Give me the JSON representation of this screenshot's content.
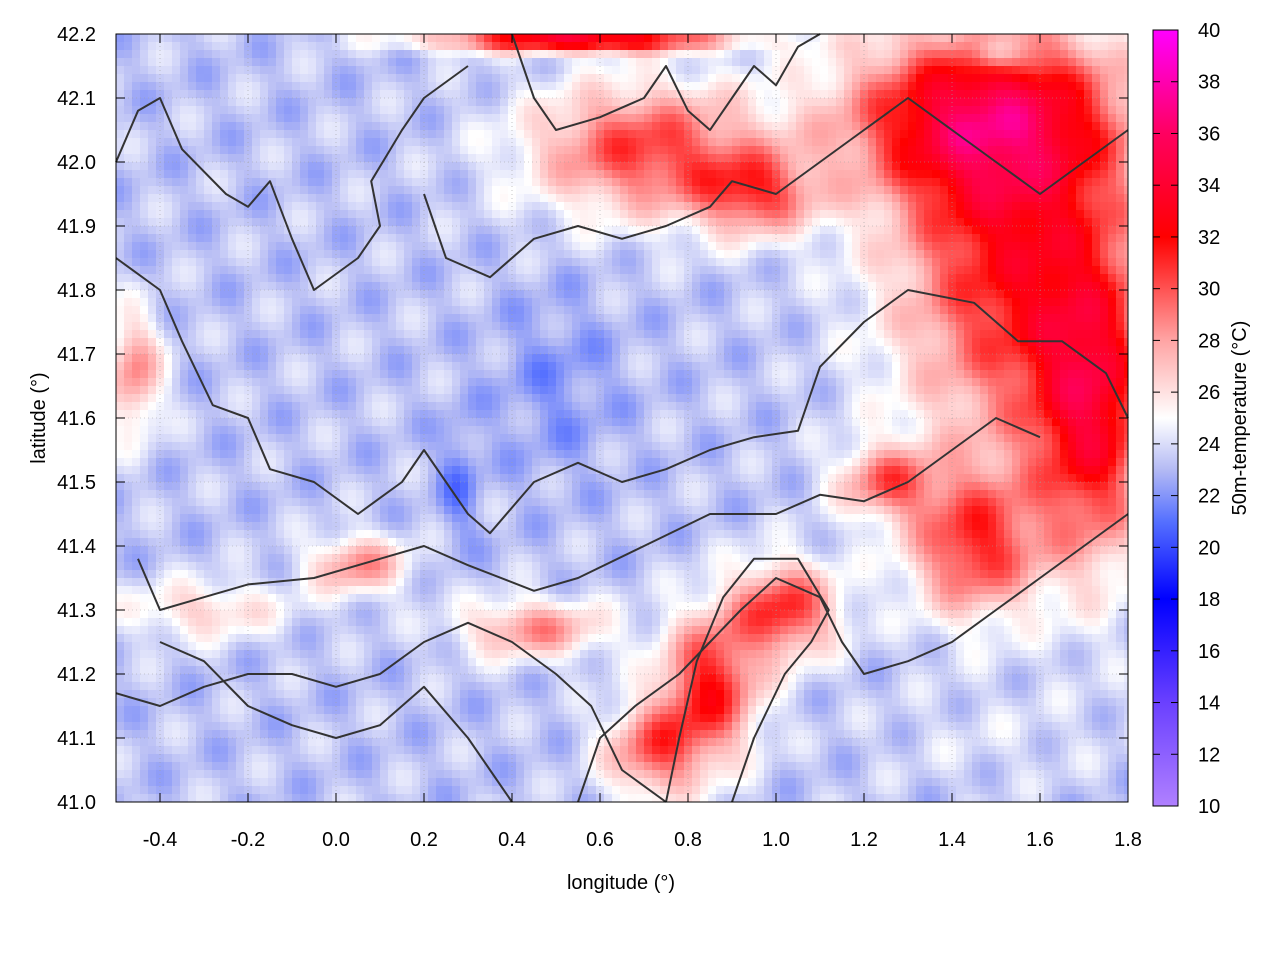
{
  "chart_data": {
    "type": "heatmap",
    "title": "",
    "xlabel": "longitude (°)",
    "ylabel": "latitude (°)",
    "colorbar_label": "50m-temperature (°C)",
    "xlim": [
      -0.5,
      1.8
    ],
    "ylim": [
      41.0,
      42.2
    ],
    "clim": [
      10,
      40
    ],
    "xticks": [
      "-0.4",
      "-0.2",
      "0.0",
      "0.2",
      "0.4",
      "0.6",
      "0.8",
      "1.0",
      "1.2",
      "1.4",
      "1.6",
      "1.8"
    ],
    "yticks": [
      "41.0",
      "41.1",
      "41.2",
      "41.3",
      "41.4",
      "41.5",
      "41.6",
      "41.7",
      "41.8",
      "41.9",
      "42.0",
      "42.1",
      "42.2"
    ],
    "cticks": [
      "10",
      "12",
      "14",
      "16",
      "18",
      "20",
      "22",
      "24",
      "26",
      "28",
      "30",
      "32",
      "34",
      "36",
      "38",
      "40"
    ],
    "grid": true,
    "colormap": [
      {
        "v": 10,
        "c": "#b080ff"
      },
      {
        "v": 14,
        "c": "#6a40ff"
      },
      {
        "v": 18,
        "c": "#0000ff"
      },
      {
        "v": 21,
        "c": "#5570ff"
      },
      {
        "v": 23,
        "c": "#b4baf4"
      },
      {
        "v": 25,
        "c": "#ffffff"
      },
      {
        "v": 28,
        "c": "#ffa4a4"
      },
      {
        "v": 32,
        "c": "#ff0000"
      },
      {
        "v": 36,
        "c": "#ff0060"
      },
      {
        "v": 40,
        "c": "#ff00ff"
      }
    ],
    "field": {
      "base_temperature": 23.3,
      "regions": [
        {
          "lon": 1.55,
          "lat": 41.85,
          "rlon": 0.3,
          "rlat": 0.33,
          "temp": 32
        },
        {
          "lon": 1.45,
          "lat": 42.07,
          "rlon": 0.35,
          "rlat": 0.14,
          "temp": 32
        },
        {
          "lon": 1.72,
          "lat": 41.6,
          "rlon": 0.14,
          "rlat": 0.25,
          "temp": 31.5
        },
        {
          "lon": 0.7,
          "lat": 42.02,
          "rlon": 0.28,
          "rlat": 0.11,
          "temp": 30.5
        },
        {
          "lon": 0.95,
          "lat": 41.95,
          "rlon": 0.15,
          "rlat": 0.07,
          "temp": 29.5
        },
        {
          "lon": 1.45,
          "lat": 41.4,
          "rlon": 0.16,
          "rlat": 0.12,
          "temp": 30.5
        },
        {
          "lon": 1.25,
          "lat": 41.5,
          "rlon": 0.12,
          "rlat": 0.06,
          "temp": 29
        },
        {
          "lon": 0.85,
          "lat": 41.18,
          "rlon": 0.12,
          "rlat": 0.12,
          "temp": 31.5
        },
        {
          "lon": 1.02,
          "lat": 41.3,
          "rlon": 0.13,
          "rlat": 0.08,
          "temp": 31
        },
        {
          "lon": 0.72,
          "lat": 41.08,
          "rlon": 0.12,
          "rlat": 0.08,
          "temp": 29.5
        },
        {
          "lon": 0.05,
          "lat": 41.37,
          "rlon": 0.12,
          "rlat": 0.05,
          "temp": 28.5
        },
        {
          "lon": 0.45,
          "lat": 41.27,
          "rlon": 0.18,
          "rlat": 0.05,
          "temp": 28.5
        },
        {
          "lon": -0.46,
          "lat": 41.67,
          "rlon": 0.07,
          "rlat": 0.1,
          "temp": 28.5
        },
        {
          "lon": -0.3,
          "lat": 41.3,
          "rlon": 0.2,
          "rlat": 0.05,
          "temp": 26.5
        },
        {
          "lon": 0.55,
          "lat": 42.19,
          "rlon": 0.35,
          "rlat": 0.02,
          "temp": 34
        },
        {
          "lon": 1.5,
          "lat": 41.1,
          "rlon": 0.32,
          "rlat": 0.09,
          "temp": 24
        },
        {
          "lon": 0.5,
          "lat": 41.65,
          "rlon": 0.15,
          "rlat": 0.15,
          "temp": 22
        },
        {
          "lon": 0.28,
          "lat": 41.5,
          "rlon": 0.05,
          "rlat": 0.1,
          "temp": 21.5
        },
        {
          "lon": 1.5,
          "lat": 42.17,
          "rlon": 0.06,
          "rlat": 0.03,
          "temp": 19
        }
      ]
    },
    "contours": [
      [
        [
          -0.5,
          42.0
        ],
        [
          -0.45,
          42.08
        ],
        [
          -0.4,
          42.1
        ],
        [
          -0.35,
          42.02
        ],
        [
          -0.25,
          41.95
        ],
        [
          -0.2,
          41.93
        ],
        [
          -0.15,
          41.97
        ],
        [
          -0.1,
          41.88
        ],
        [
          -0.05,
          41.8
        ],
        [
          0.05,
          41.85
        ],
        [
          0.1,
          41.9
        ],
        [
          0.08,
          41.97
        ],
        [
          0.15,
          42.05
        ],
        [
          0.2,
          42.1
        ],
        [
          0.3,
          42.15
        ]
      ],
      [
        [
          -0.5,
          41.85
        ],
        [
          -0.4,
          41.8
        ],
        [
          -0.35,
          41.72
        ],
        [
          -0.28,
          41.62
        ],
        [
          -0.2,
          41.6
        ],
        [
          -0.15,
          41.52
        ],
        [
          -0.05,
          41.5
        ],
        [
          0.05,
          41.45
        ],
        [
          0.15,
          41.5
        ],
        [
          0.2,
          41.55
        ],
        [
          0.25,
          41.5
        ],
        [
          0.3,
          41.45
        ],
        [
          0.35,
          41.42
        ],
        [
          0.45,
          41.5
        ],
        [
          0.55,
          41.53
        ],
        [
          0.65,
          41.5
        ],
        [
          0.75,
          41.52
        ],
        [
          0.85,
          41.55
        ],
        [
          0.95,
          41.57
        ],
        [
          1.05,
          41.58
        ],
        [
          1.1,
          41.68
        ],
        [
          1.2,
          41.75
        ],
        [
          1.3,
          41.8
        ],
        [
          1.45,
          41.78
        ],
        [
          1.55,
          41.72
        ],
        [
          1.65,
          41.72
        ],
        [
          1.75,
          41.67
        ],
        [
          1.8,
          41.6
        ]
      ],
      [
        [
          -0.45,
          41.38
        ],
        [
          -0.4,
          41.3
        ],
        [
          -0.3,
          41.32
        ],
        [
          -0.2,
          41.34
        ],
        [
          -0.05,
          41.35
        ],
        [
          0.1,
          41.38
        ],
        [
          0.2,
          41.4
        ],
        [
          0.3,
          41.37
        ],
        [
          0.45,
          41.33
        ],
        [
          0.55,
          41.35
        ],
        [
          0.7,
          41.4
        ],
        [
          0.85,
          41.45
        ],
        [
          1.0,
          41.45
        ],
        [
          1.1,
          41.48
        ],
        [
          1.2,
          41.47
        ],
        [
          1.3,
          41.5
        ],
        [
          1.4,
          41.55
        ],
        [
          1.5,
          41.6
        ],
        [
          1.6,
          41.57
        ]
      ],
      [
        [
          -0.5,
          41.17
        ],
        [
          -0.4,
          41.15
        ],
        [
          -0.3,
          41.18
        ],
        [
          -0.2,
          41.2
        ],
        [
          -0.1,
          41.2
        ],
        [
          0.0,
          41.18
        ],
        [
          0.1,
          41.2
        ],
        [
          0.2,
          41.25
        ],
        [
          0.3,
          41.28
        ],
        [
          0.4,
          41.25
        ],
        [
          0.5,
          41.2
        ],
        [
          0.58,
          41.15
        ],
        [
          0.65,
          41.05
        ],
        [
          0.75,
          41.0
        ]
      ],
      [
        [
          -0.4,
          41.25
        ],
        [
          -0.3,
          41.22
        ],
        [
          -0.2,
          41.15
        ],
        [
          -0.1,
          41.12
        ],
        [
          0.0,
          41.1
        ],
        [
          0.1,
          41.12
        ],
        [
          0.2,
          41.18
        ],
        [
          0.3,
          41.1
        ],
        [
          0.35,
          41.05
        ],
        [
          0.4,
          41.0
        ]
      ],
      [
        [
          0.55,
          41.0
        ],
        [
          0.6,
          41.1
        ],
        [
          0.68,
          41.15
        ],
        [
          0.78,
          41.2
        ],
        [
          0.85,
          41.25
        ],
        [
          0.92,
          41.3
        ],
        [
          1.0,
          41.35
        ],
        [
          1.1,
          41.32
        ],
        [
          1.15,
          41.25
        ],
        [
          1.2,
          41.2
        ],
        [
          1.3,
          41.22
        ],
        [
          1.4,
          41.25
        ],
        [
          1.5,
          41.3
        ],
        [
          1.6,
          41.35
        ],
        [
          1.7,
          41.4
        ],
        [
          1.8,
          41.45
        ]
      ],
      [
        [
          0.9,
          41.0
        ],
        [
          0.95,
          41.1
        ],
        [
          1.02,
          41.2
        ],
        [
          1.08,
          41.25
        ],
        [
          1.12,
          41.3
        ],
        [
          1.05,
          41.38
        ],
        [
          0.95,
          41.38
        ],
        [
          0.88,
          41.32
        ],
        [
          0.82,
          41.22
        ],
        [
          0.78,
          41.1
        ],
        [
          0.75,
          41.0
        ]
      ],
      [
        [
          0.2,
          41.95
        ],
        [
          0.25,
          41.85
        ],
        [
          0.35,
          41.82
        ],
        [
          0.45,
          41.88
        ],
        [
          0.55,
          41.9
        ],
        [
          0.65,
          41.88
        ],
        [
          0.75,
          41.9
        ],
        [
          0.85,
          41.93
        ],
        [
          0.9,
          41.97
        ],
        [
          1.0,
          41.95
        ],
        [
          1.1,
          42.0
        ],
        [
          1.2,
          42.05
        ],
        [
          1.3,
          42.1
        ],
        [
          1.4,
          42.05
        ],
        [
          1.5,
          42.0
        ],
        [
          1.6,
          41.95
        ],
        [
          1.7,
          42.0
        ],
        [
          1.8,
          42.05
        ]
      ],
      [
        [
          0.4,
          42.2
        ],
        [
          0.45,
          42.1
        ],
        [
          0.5,
          42.05
        ],
        [
          0.6,
          42.07
        ],
        [
          0.7,
          42.1
        ],
        [
          0.75,
          42.15
        ],
        [
          0.8,
          42.08
        ],
        [
          0.85,
          42.05
        ],
        [
          0.9,
          42.1
        ],
        [
          0.95,
          42.15
        ],
        [
          1.0,
          42.12
        ],
        [
          1.05,
          42.18
        ],
        [
          1.1,
          42.2
        ]
      ]
    ]
  }
}
